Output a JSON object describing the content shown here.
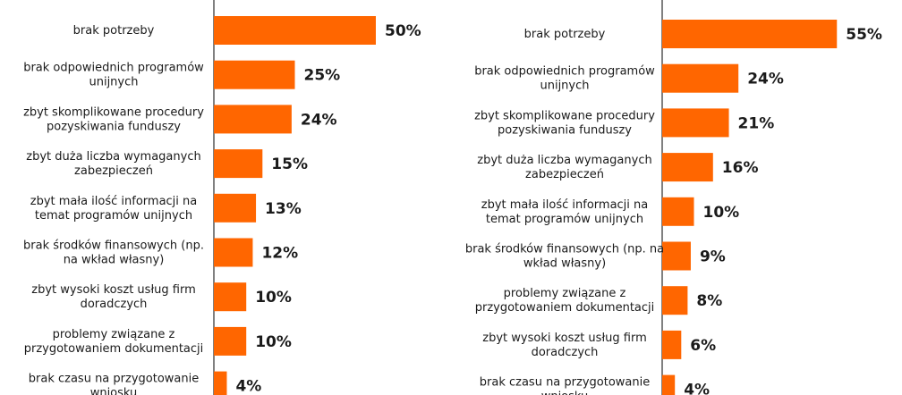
{
  "chart_data": [
    {
      "type": "bar",
      "orientation": "horizontal",
      "categories": [
        [
          "brak potrzeby"
        ],
        [
          "brak odpowiednich programów",
          "unijnych"
        ],
        [
          "zbyt skomplikowane procedury",
          "pozyskiwania funduszy"
        ],
        [
          "zbyt duża liczba wymaganych",
          "zabezpieczeń"
        ],
        [
          "zbyt mała ilość informacji na",
          "temat programów unijnych"
        ],
        [
          "brak środków finansowych (np.",
          "na wkład własny)"
        ],
        [
          "zbyt wysoki koszt usług firm",
          "doradczych"
        ],
        [
          "problemy związane z",
          "przygotowaniem dokumentacji"
        ],
        [
          "brak czasu na przygotowanie",
          "wniosku"
        ]
      ],
      "values": [
        50,
        25,
        24,
        15,
        13,
        12,
        10,
        10,
        4
      ],
      "value_labels": [
        "50%",
        "25%",
        "24%",
        "15%",
        "13%",
        "12%",
        "10%",
        "10%",
        "4%"
      ],
      "bar_color": "#ff6600",
      "grid": false
    },
    {
      "type": "bar",
      "orientation": "horizontal",
      "categories": [
        [
          "brak potrzeby"
        ],
        [
          "brak odpowiednich programów",
          "unijnych"
        ],
        [
          "zbyt skomplikowane procedury",
          "pozyskiwania funduszy"
        ],
        [
          "zbyt duża liczba wymaganych",
          "zabezpieczeń"
        ],
        [
          "zbyt mała ilość informacji na",
          "temat programów unijnych"
        ],
        [
          "brak środków finansowych (np. na",
          "wkład własny)"
        ],
        [
          "problemy związane z",
          "przygotowaniem dokumentacji"
        ],
        [
          "zbyt wysoki koszt usług firm",
          "doradczych"
        ],
        [
          "brak czasu na przygotowanie",
          "wniosku"
        ]
      ],
      "values": [
        55,
        24,
        21,
        16,
        10,
        9,
        8,
        6,
        4
      ],
      "value_labels": [
        "55%",
        "24%",
        "21%",
        "16%",
        "10%",
        "9%",
        "8%",
        "6%",
        "4%"
      ],
      "bar_color": "#ff6600",
      "grid": false
    }
  ]
}
